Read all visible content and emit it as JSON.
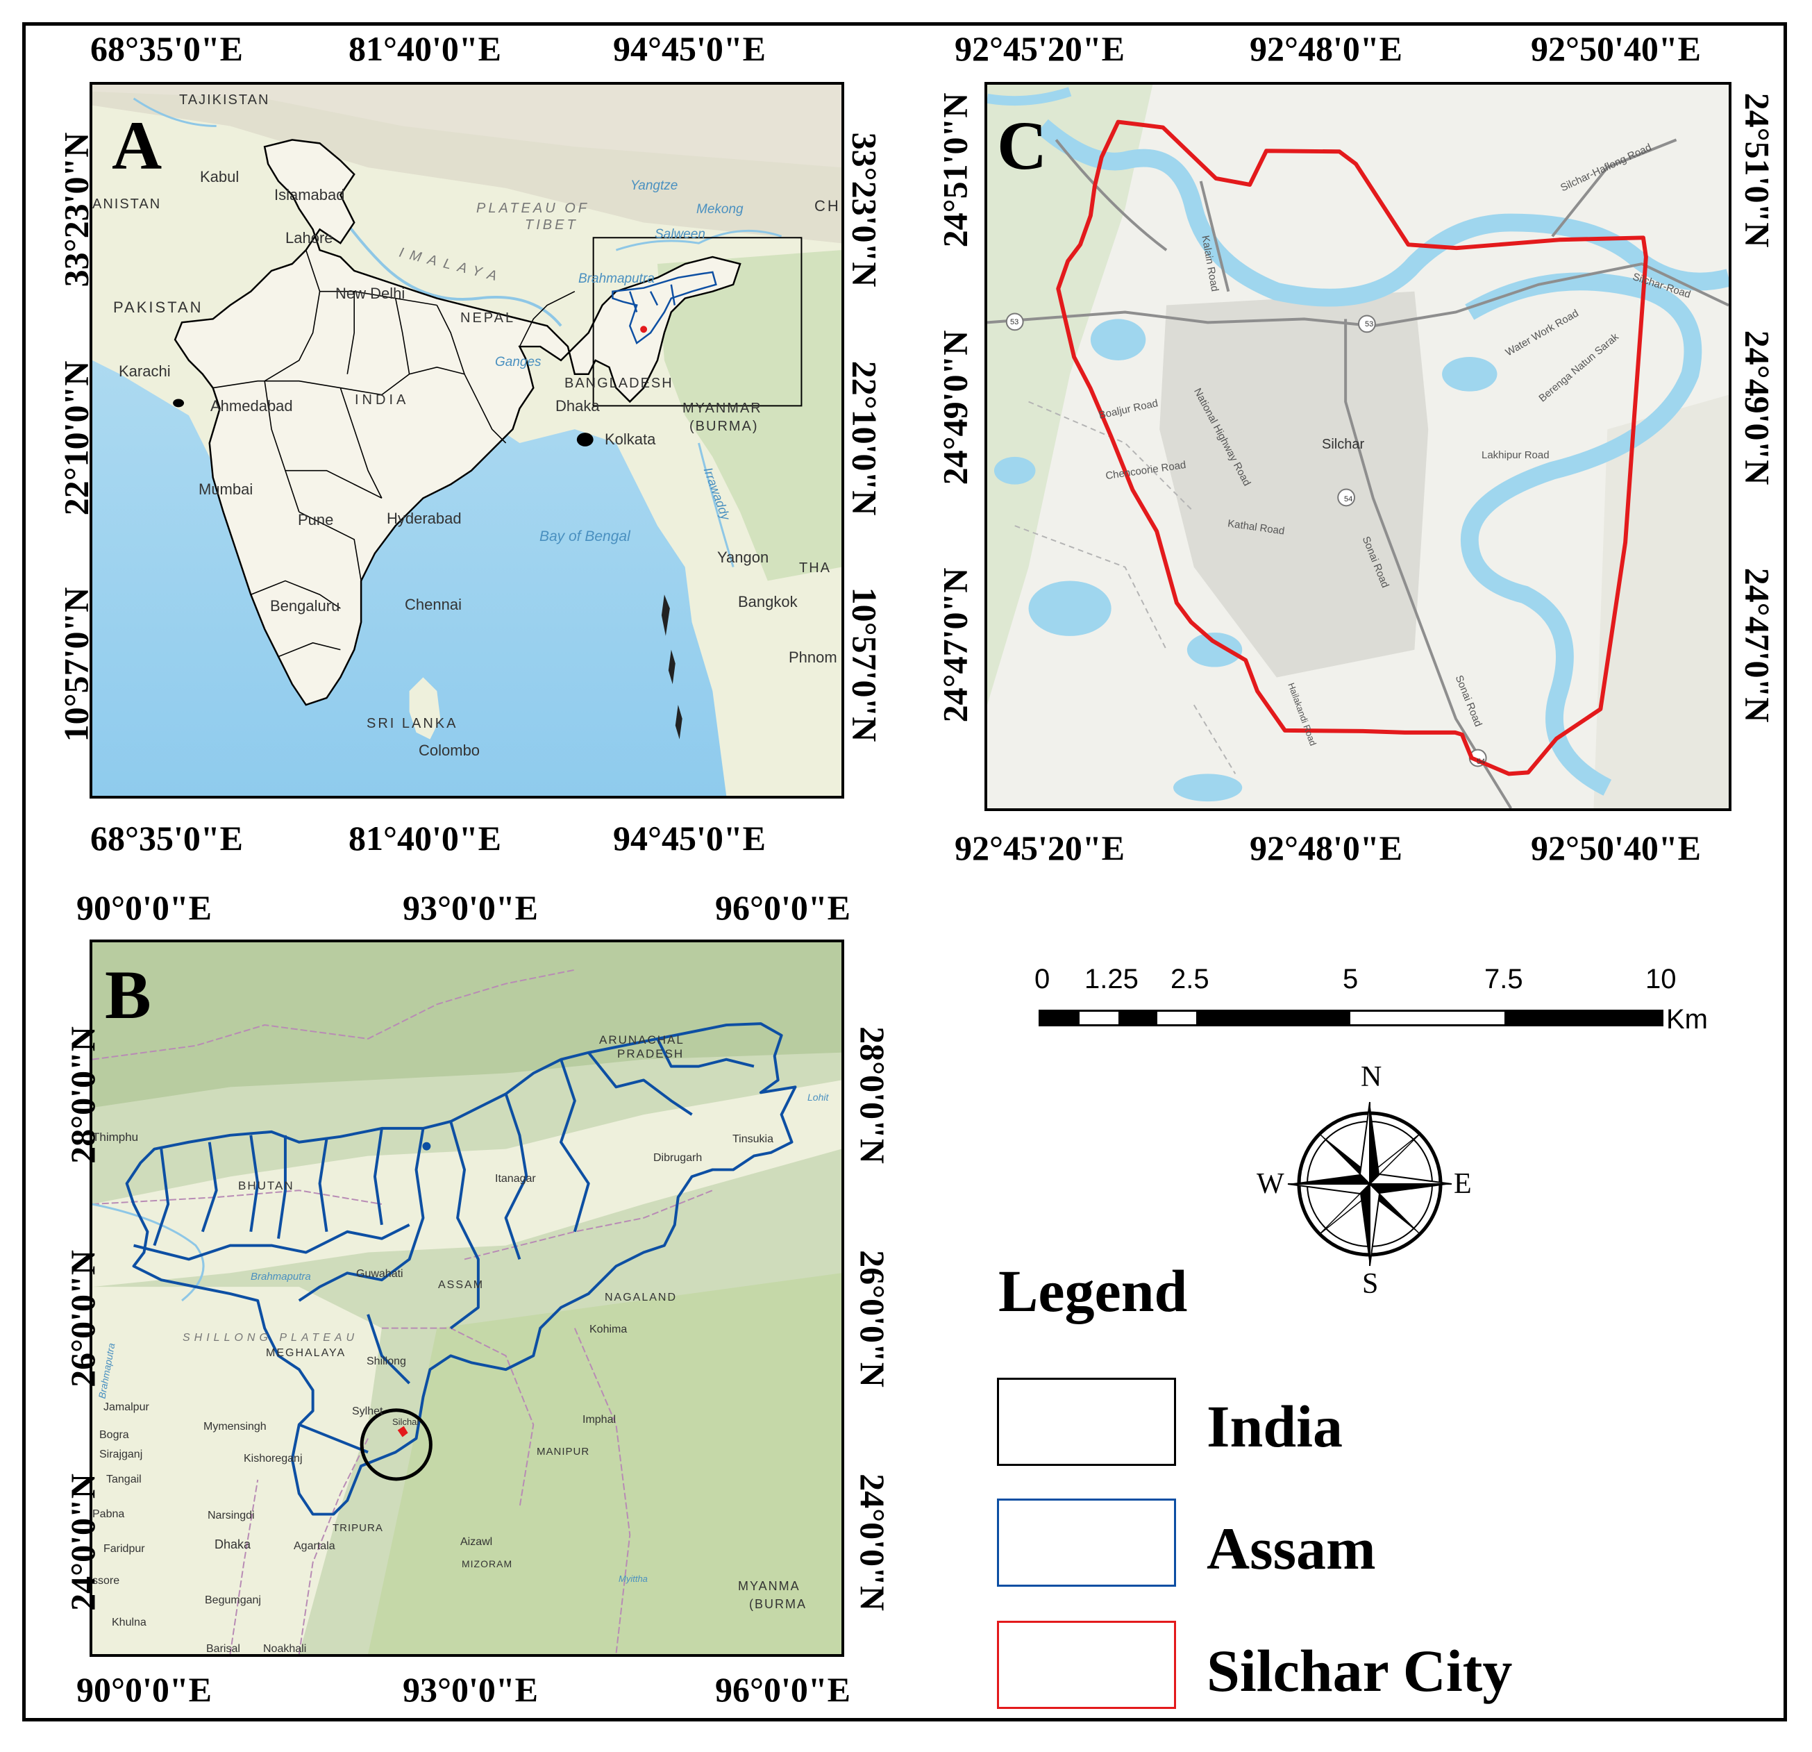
{
  "panels": {
    "a": {
      "letter": "A",
      "x_ticks": [
        "68°35'0\"E",
        "81°40'0\"E",
        "94°45'0\"E"
      ],
      "y_ticks": [
        "33°23'0\"N",
        "22°10'0\"N",
        "10°57'0\"N"
      ],
      "labels": {
        "tajikistan": "TAJIKISTAN",
        "kabul": "Kabul",
        "afghanistan": "ANISTAN",
        "islamabad": "Islamabad",
        "lahore": "Lahore",
        "pakistan": "PAKISTAN",
        "plateau": "PLATEAU OF",
        "tibet": "TIBET",
        "yangtze": "Yangtze",
        "mekong": "Mekong",
        "salween": "Salween",
        "himalaya": "IMALAYA",
        "brahmaputra": "Brahmaputra",
        "new_delhi": "New Delhi",
        "nepal": "NEPAL",
        "karachi": "Karachi",
        "ganges": "Ganges",
        "bangladesh": "BANGLADESH",
        "ahmedabad": "Ahmedabad",
        "india": "INDIA",
        "dhaka": "Dhaka",
        "myanmar": "MYANMAR",
        "burma": "(BURMA)",
        "kolkata": "Kolkata",
        "mumbai": "Mumbai",
        "pune": "Pune",
        "hyderabad": "Hyderabad",
        "bay_of_bengal": "Bay of Bengal",
        "irrawaddy": "Irrawaddy",
        "yangon": "Yangon",
        "tha": "THA",
        "bengaluru": "Bengaluru",
        "chennai": "Chennai",
        "bangkok": "Bangkok",
        "phnom": "Phnom",
        "sri_lanka": "SRI LANKA",
        "colombo": "Colombo",
        "china_fragment": "CH"
      }
    },
    "b": {
      "letter": "B",
      "x_ticks": [
        "90°0'0\"E",
        "93°0'0\"E",
        "96°0'0\"E"
      ],
      "y_ticks": [
        "28°0'0\"N",
        "26°0'0\"N",
        "24°0'0\"N"
      ],
      "labels": {
        "arunachal": "ARUNACHAL",
        "pradesh": "PRADESH",
        "lohit": "Lohit",
        "tinsukia": "Tinsukia",
        "dibrugarh": "Dibrugarh",
        "thimphu": "Thimphu",
        "bhutan": "BHUTAN",
        "itanagar": "Itanagar",
        "brahmaputra": "Brahmaputra",
        "guwahati": "Guwahati",
        "assam": "ASSAM",
        "nagaland": "NAGALAND",
        "kohima": "Kohima",
        "shillong_plateau": "SHILLONG PLATEAU",
        "meghalaya": "MEGHALAYA",
        "shillong": "Shillong",
        "brahmaputra_v": "Brahmaputra",
        "jamalpur": "Jamalpur",
        "mymensingh": "Mymensingh",
        "sylhet": "Sylhet",
        "silchar": "Silchar",
        "imphal": "Imphal",
        "bogra": "Bogra",
        "sirajganj": "Sirajganj",
        "kishoreganj": "Kishoreganj",
        "manipur": "MANIPUR",
        "tangail": "Tangail",
        "pabna": "Pabna",
        "narsingdi": "Narsingdi",
        "tripura": "TRIPURA",
        "aizawl": "Aizawl",
        "faridpur": "Faridpur",
        "dhaka": "Dhaka",
        "agartala": "Agartala",
        "mizoram": "MIZORAM",
        "myanmar": "MYANMA",
        "burma": "(BURMA",
        "ssore": "ssore",
        "begumganj": "Begumganj",
        "khulna": "Khulna",
        "barisal": "Barisal",
        "noakhali": "Noakhali",
        "mittha": "Myittha"
      }
    },
    "c": {
      "letter": "C",
      "x_ticks": [
        "92°45'20\"E",
        "92°48'0\"E",
        "92°50'40\"E"
      ],
      "y_ticks": [
        "24°51'0\"N",
        "24°49'0\"N",
        "24°47'0\"N"
      ],
      "labels": {
        "silchar": "Silchar",
        "kalain_road": "Kalain Road",
        "silchar_haflong_road": "Silchar-Haflong Road",
        "silchar_road": "Silchar-Road",
        "water_work_road": "Water Work Road",
        "berenga_road": "Berenga Natun Sarak",
        "boaljur_road": "Boaljur Road",
        "national_highway_road": "National Highway Road",
        "chencoorie_road": "Chencoorie Road",
        "lakhipur_road": "Lakhipur Road",
        "kathal_road": "Kathal Road",
        "sonai_road": "Sonai Road",
        "sonai_road2": "Sonai Road",
        "hailakandi_road": "Hailakandi Road",
        "nh53": "53",
        "nh53b": "53",
        "nh54": "54",
        "nh54b": "54"
      }
    }
  },
  "scale_bar": {
    "labels": [
      "0",
      "1.25",
      "2.5",
      "5",
      "7.5",
      "10"
    ],
    "unit": "Km"
  },
  "north_arrow": {
    "n": "N",
    "s": "S",
    "e": "E",
    "w": "W"
  },
  "legend": {
    "title": "Legend",
    "items": [
      {
        "label": "India",
        "color": "#000000"
      },
      {
        "label": "Assam",
        "color": "#0d4fa3"
      },
      {
        "label": "Silchar City",
        "color": "#e31a1c"
      }
    ]
  },
  "colors": {
    "india_boundary": "#000000",
    "assam_boundary": "#0d4fa3",
    "silchar_boundary": "#e31a1c",
    "sea": "#a6d8f0",
    "land": "#f2f0e4",
    "terrain": "#c9d9b5",
    "river": "#9fd6ee"
  }
}
